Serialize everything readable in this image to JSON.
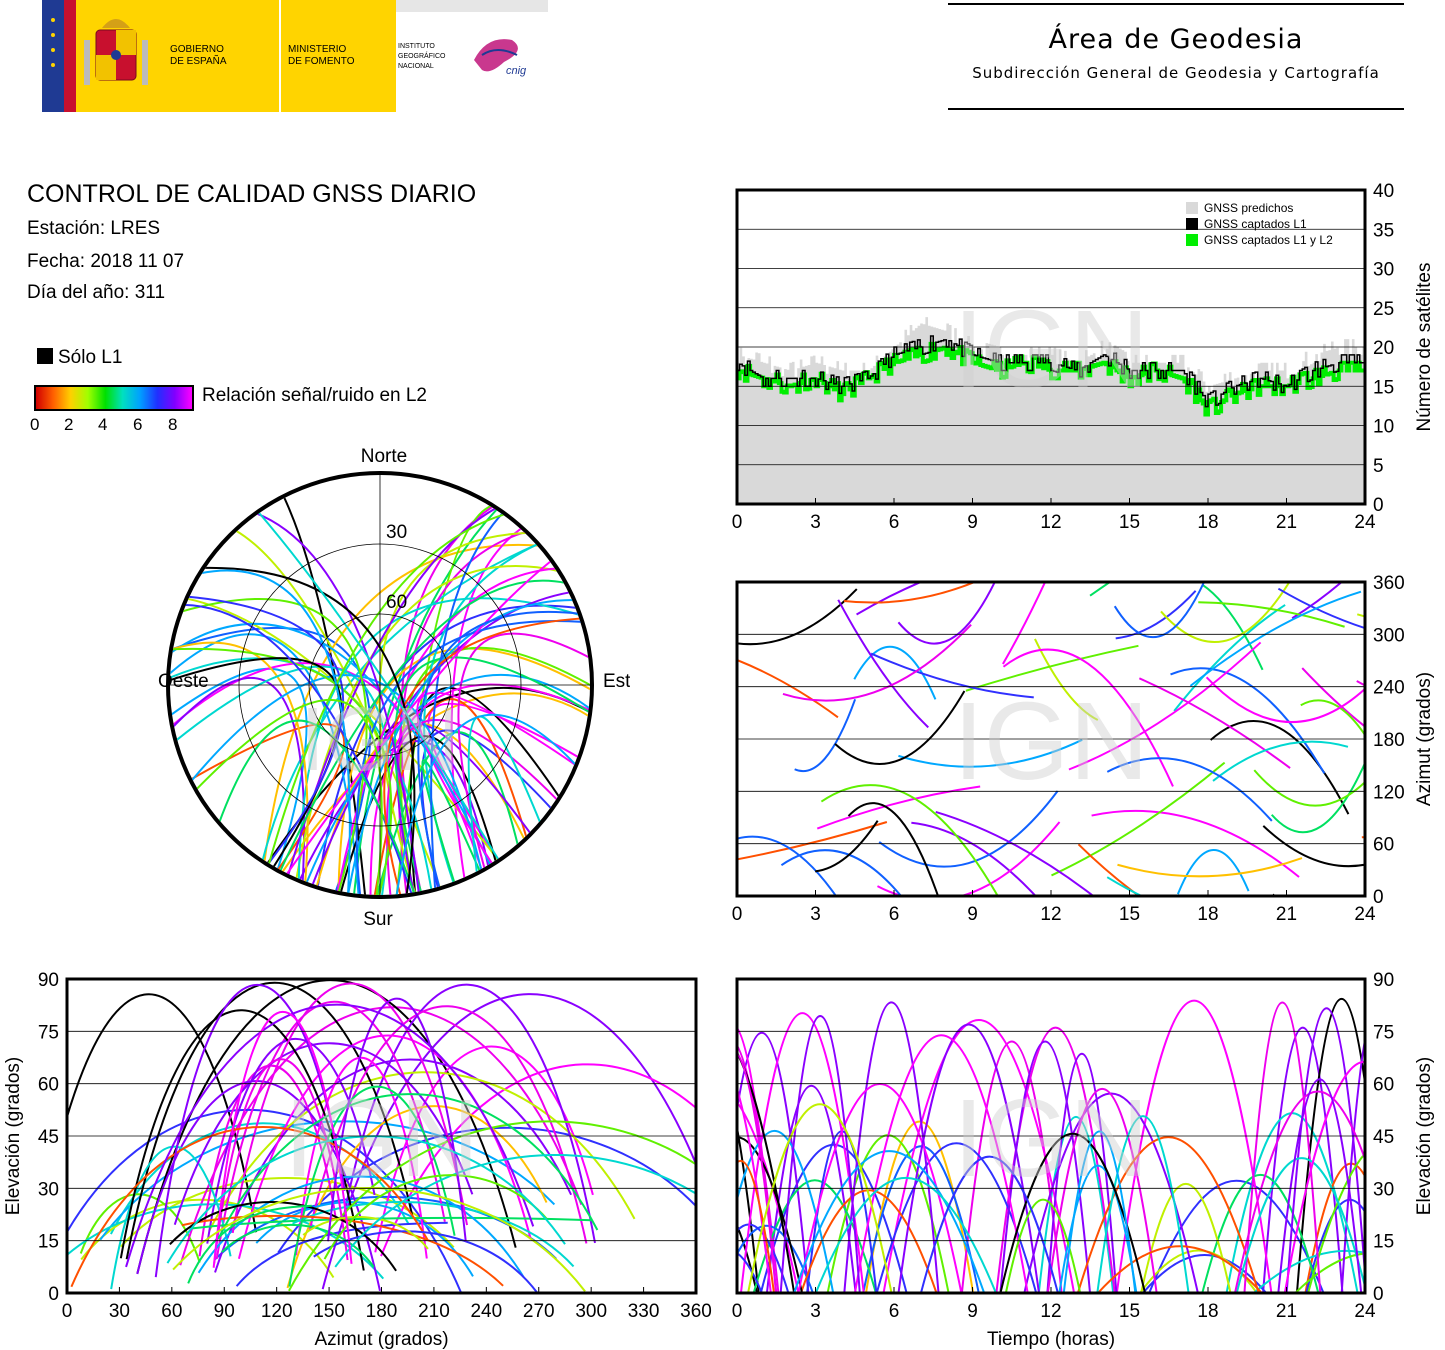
{
  "header": {
    "gobierno": [
      "GOBIERNO",
      "DE ESPAÑA"
    ],
    "ministerio": [
      "MINISTERIO",
      "DE FOMENTO"
    ],
    "instituto": [
      "INSTITUTO",
      "GEOGRÁFICO",
      "NACIONAL"
    ],
    "cnig": "cnig",
    "area_title": "Área de Geodesia",
    "area_subtitle": "Subdirección General de Geodesia y Cartografía",
    "colors": {
      "yellow": "#ffd400",
      "red": "#c8102e",
      "blue": "#1f3a93"
    }
  },
  "info": {
    "title": "CONTROL DE CALIDAD GNSS DIARIO",
    "station": "Estación: LRES",
    "date": "Fecha: 2018 11 07",
    "doy": "Día del año: 311"
  },
  "legend": {
    "l1_only": "Sólo L1",
    "snr_label": "Relación señal/ruido en L2",
    "snr_ticks": [
      "0",
      "2",
      "4",
      "6",
      "8"
    ]
  },
  "watermark": "IGN",
  "chart_data": [
    {
      "id": "satellite-count",
      "type": "area",
      "ylabel": "Número de satélites",
      "xlim": [
        0,
        24
      ],
      "ylim": [
        0,
        40
      ],
      "xticks": [
        0,
        3,
        6,
        9,
        12,
        15,
        18,
        21,
        24
      ],
      "yticks": [
        0,
        5,
        10,
        15,
        20,
        25,
        30,
        35,
        40
      ],
      "grid": "horizontal",
      "legend_position": "top-right",
      "series": [
        {
          "name": "GNSS predichos",
          "color": "#d9d9d9",
          "x": [
            0,
            1,
            2,
            3,
            4,
            5,
            6,
            7,
            8,
            9,
            10,
            11,
            12,
            13,
            14,
            15,
            16,
            17,
            18,
            19,
            20,
            21,
            22,
            23,
            24
          ],
          "y": [
            19,
            18,
            17,
            18,
            17,
            17,
            20,
            23,
            22,
            20,
            19,
            19,
            19,
            18,
            20,
            18,
            18,
            18,
            15,
            16,
            17,
            17,
            19,
            20,
            20
          ]
        },
        {
          "name": "GNSS captados L1",
          "color": "#000000",
          "x": [
            0,
            1,
            2,
            3,
            4,
            5,
            6,
            7,
            8,
            9,
            10,
            11,
            12,
            13,
            14,
            15,
            16,
            17,
            18,
            19,
            20,
            21,
            22,
            23,
            24
          ],
          "y": [
            18,
            16,
            16,
            16,
            15,
            16,
            19,
            20,
            21,
            19,
            18,
            18,
            18,
            17,
            19,
            17,
            17,
            17,
            13,
            15,
            16,
            15,
            17,
            18,
            18
          ]
        },
        {
          "name": "GNSS captados L1 y L2",
          "color": "#00ee00",
          "x": [
            0,
            1,
            2,
            3,
            4,
            5,
            6,
            7,
            8,
            9,
            10,
            11,
            12,
            13,
            14,
            15,
            16,
            17,
            18,
            19,
            20,
            21,
            22,
            23,
            24
          ],
          "y": [
            17,
            16,
            15,
            16,
            14,
            16,
            18,
            19,
            20,
            18,
            17,
            18,
            17,
            17,
            18,
            16,
            17,
            16,
            12,
            14,
            15,
            15,
            16,
            17,
            17
          ]
        }
      ]
    },
    {
      "id": "azimuth-time",
      "type": "scatter",
      "ylabel": "Azimut (grados)",
      "xlim": [
        0,
        24
      ],
      "ylim": [
        0,
        360
      ],
      "xticks": [
        0,
        3,
        6,
        9,
        12,
        15,
        18,
        21,
        24
      ],
      "yticks": [
        0,
        60,
        120,
        180,
        240,
        300,
        360
      ],
      "grid": "horizontal"
    },
    {
      "id": "elevation-azimuth",
      "type": "scatter",
      "xlabel": "Azimut (grados)",
      "ylabel": "Elevación (grados)",
      "xlim": [
        0,
        360
      ],
      "ylim": [
        0,
        90
      ],
      "xticks": [
        0,
        30,
        60,
        90,
        120,
        150,
        180,
        210,
        240,
        270,
        300,
        330,
        360
      ],
      "yticks": [
        0,
        15,
        30,
        45,
        60,
        75,
        90
      ],
      "grid": "horizontal"
    },
    {
      "id": "elevation-time",
      "type": "scatter",
      "xlabel": "Tiempo (horas)",
      "ylabel": "Elevación (grados)",
      "xlim": [
        0,
        24
      ],
      "ylim": [
        0,
        90
      ],
      "xticks": [
        0,
        3,
        6,
        9,
        12,
        15,
        18,
        21,
        24
      ],
      "yticks": [
        0,
        15,
        30,
        45,
        60,
        75,
        90
      ],
      "grid": "horizontal"
    },
    {
      "id": "skyplot",
      "type": "scatter",
      "labels": {
        "north": "Norte",
        "south": "Sur",
        "east": "Este",
        "west": "Oeste"
      },
      "rings": [
        "30",
        "60"
      ]
    }
  ]
}
